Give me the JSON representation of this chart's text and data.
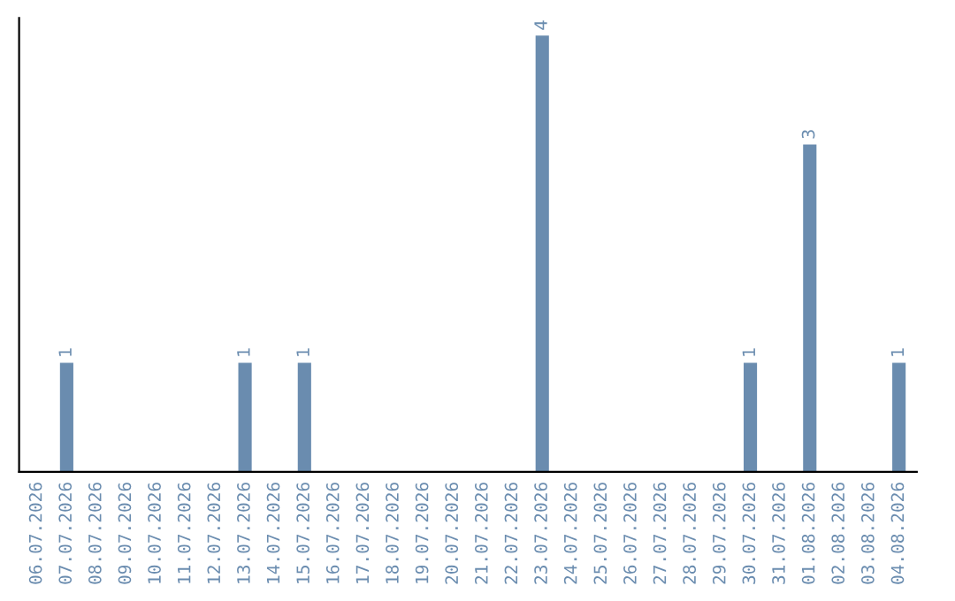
{
  "chart_data": {
    "type": "bar",
    "categories": [
      "06.07.2026",
      "07.07.2026",
      "08.07.2026",
      "09.07.2026",
      "10.07.2026",
      "11.07.2026",
      "12.07.2026",
      "13.07.2026",
      "14.07.2026",
      "15.07.2026",
      "16.07.2026",
      "17.07.2026",
      "18.07.2026",
      "19.07.2026",
      "20.07.2026",
      "21.07.2026",
      "22.07.2026",
      "23.07.2026",
      "24.07.2026",
      "25.07.2026",
      "26.07.2026",
      "27.07.2026",
      "28.07.2026",
      "29.07.2026",
      "30.07.2026",
      "31.07.2026",
      "01.08.2026",
      "02.08.2026",
      "03.08.2026",
      "04.08.2026"
    ],
    "values": [
      0,
      1,
      0,
      0,
      0,
      0,
      0,
      1,
      0,
      1,
      0,
      0,
      0,
      0,
      0,
      0,
      0,
      4,
      0,
      0,
      0,
      0,
      0,
      0,
      1,
      0,
      3,
      0,
      0,
      1
    ],
    "value_labels": [
      null,
      "1",
      null,
      null,
      null,
      null,
      null,
      "1",
      null,
      "1",
      null,
      null,
      null,
      null,
      null,
      null,
      null,
      "4",
      null,
      null,
      null,
      null,
      null,
      null,
      "1",
      null,
      "3",
      null,
      null,
      "1"
    ],
    "color": "#6a8caf",
    "grid": false,
    "tick_labels": "x"
  }
}
